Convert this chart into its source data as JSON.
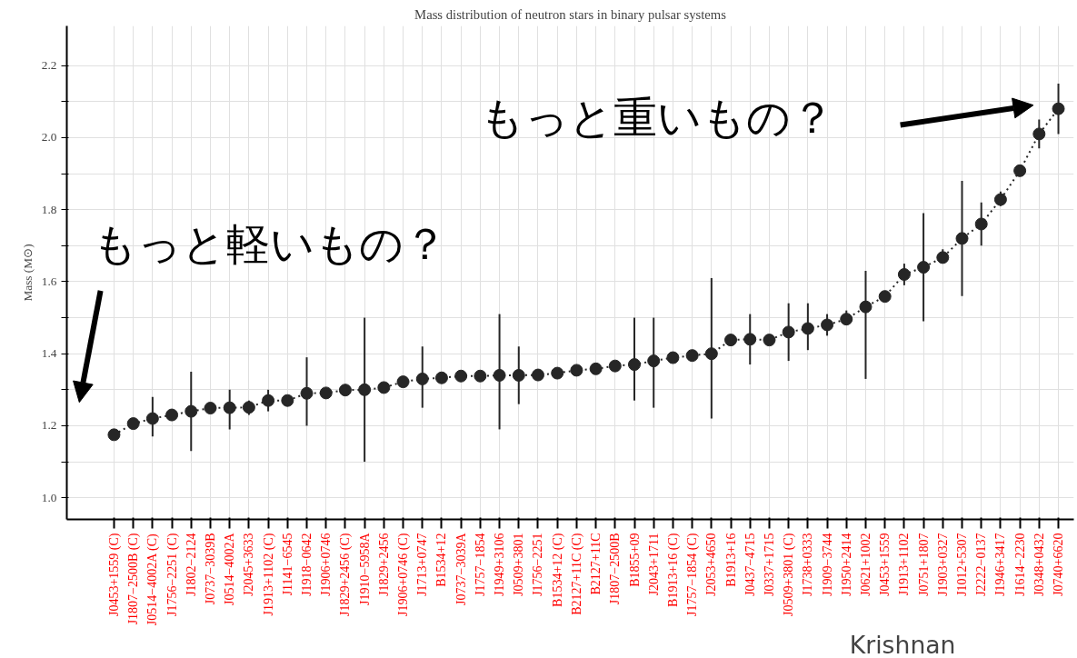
{
  "chart_data": {
    "type": "line",
    "title": "Mass distribution of neutron stars in binary pulsar systems",
    "ylabel": "Mass (M⊙)",
    "categories": [
      "J0453+1559 (C)",
      "J1807−2500B (C)",
      "J0514−4002A (C)",
      "J1756−2251 (C)",
      "J1802−2124",
      "J0737−3039B",
      "J0514−4002A",
      "J2045+3633",
      "J1913+1102 (C)",
      "J1141−6545",
      "J1918−0642",
      "J1906+0746",
      "J1829+2456 (C)",
      "J1910−5958A",
      "J1829+2456",
      "J1906+0746 (C)",
      "J1713+0747",
      "B1534+12",
      "J0737−3039A",
      "J1757−1854",
      "J1949+3106",
      "J0509+3801",
      "J1756−2251",
      "B1534+12 (C)",
      "B2127+11C (C)",
      "B2127+11C",
      "J1807−2500B",
      "B1855+09",
      "J2043+1711",
      "B1913+16 (C)",
      "J1757−1854 (C)",
      "J2053+4650",
      "B1913+16",
      "J0437−4715",
      "J0337+1715",
      "J0509+3801 (C)",
      "J1738+0333",
      "J1909−3744",
      "J1950+2414",
      "J0621+1002",
      "J0453+1559",
      "J1913+1102",
      "J0751+1807",
      "J1903+0327",
      "J1012+5307",
      "J2222−0137",
      "J1946+3417",
      "J1614−2230",
      "J0348+0432",
      "J0740+6620"
    ],
    "series": [
      {
        "color": "#262626",
        "values": [
          1.175,
          1.206,
          1.22,
          1.23,
          1.24,
          1.249,
          1.25,
          1.251,
          1.27,
          1.27,
          1.29,
          1.291,
          1.299,
          1.3,
          1.306,
          1.322,
          1.33,
          1.333,
          1.338,
          1.338,
          1.34,
          1.34,
          1.341,
          1.346,
          1.354,
          1.358,
          1.366,
          1.37,
          1.38,
          1.389,
          1.395,
          1.4,
          1.438,
          1.44,
          1.438,
          1.46,
          1.47,
          1.48,
          1.496,
          1.53,
          1.559,
          1.62,
          1.64,
          1.667,
          1.72,
          1.76,
          1.828,
          1.908,
          2.01,
          2.08
        ],
        "errors": [
          null,
          null,
          [
            1.17,
            1.28
          ],
          null,
          [
            1.13,
            1.35
          ],
          null,
          [
            1.19,
            1.3
          ],
          [
            1.23,
            1.27
          ],
          [
            1.24,
            1.3
          ],
          null,
          [
            1.2,
            1.39
          ],
          null,
          null,
          [
            1.1,
            1.5
          ],
          null,
          null,
          [
            1.25,
            1.42
          ],
          null,
          null,
          null,
          [
            1.19,
            1.51
          ],
          [
            1.26,
            1.42
          ],
          null,
          null,
          null,
          null,
          null,
          [
            1.27,
            1.5
          ],
          [
            1.25,
            1.5
          ],
          null,
          null,
          [
            1.22,
            1.61
          ],
          null,
          [
            1.37,
            1.51
          ],
          null,
          [
            1.38,
            1.54
          ],
          [
            1.41,
            1.54
          ],
          [
            1.45,
            1.51
          ],
          [
            1.48,
            1.52
          ],
          [
            1.33,
            1.63
          ],
          null,
          [
            1.59,
            1.65
          ],
          [
            1.49,
            1.79
          ],
          [
            1.65,
            1.69
          ],
          [
            1.56,
            1.88
          ],
          [
            1.7,
            1.82
          ],
          [
            1.81,
            1.85
          ],
          null,
          [
            1.97,
            2.05
          ],
          [
            2.01,
            2.15
          ]
        ]
      }
    ],
    "marker": "circle",
    "line_style": "dotted",
    "ylim": [
      0.94,
      2.31
    ],
    "yticks": [
      {
        "value": 1,
        "label": "1.0"
      },
      {
        "value": 1.1,
        "label": null
      },
      1.2,
      {
        "value": 1.3,
        "label": null
      },
      1.4,
      {
        "value": 1.5,
        "label": null
      },
      1.6,
      {
        "value": 1.7,
        "label": null
      },
      1.8,
      {
        "value": 1.9,
        "label": null
      },
      {
        "value": 2,
        "label": "2.0"
      },
      {
        "value": 2.1,
        "label": null
      },
      2.2
    ],
    "grid": true,
    "annotations": [
      "もっと軽いもの？",
      "もっと重いもの？",
      "Krishnan"
    ]
  }
}
